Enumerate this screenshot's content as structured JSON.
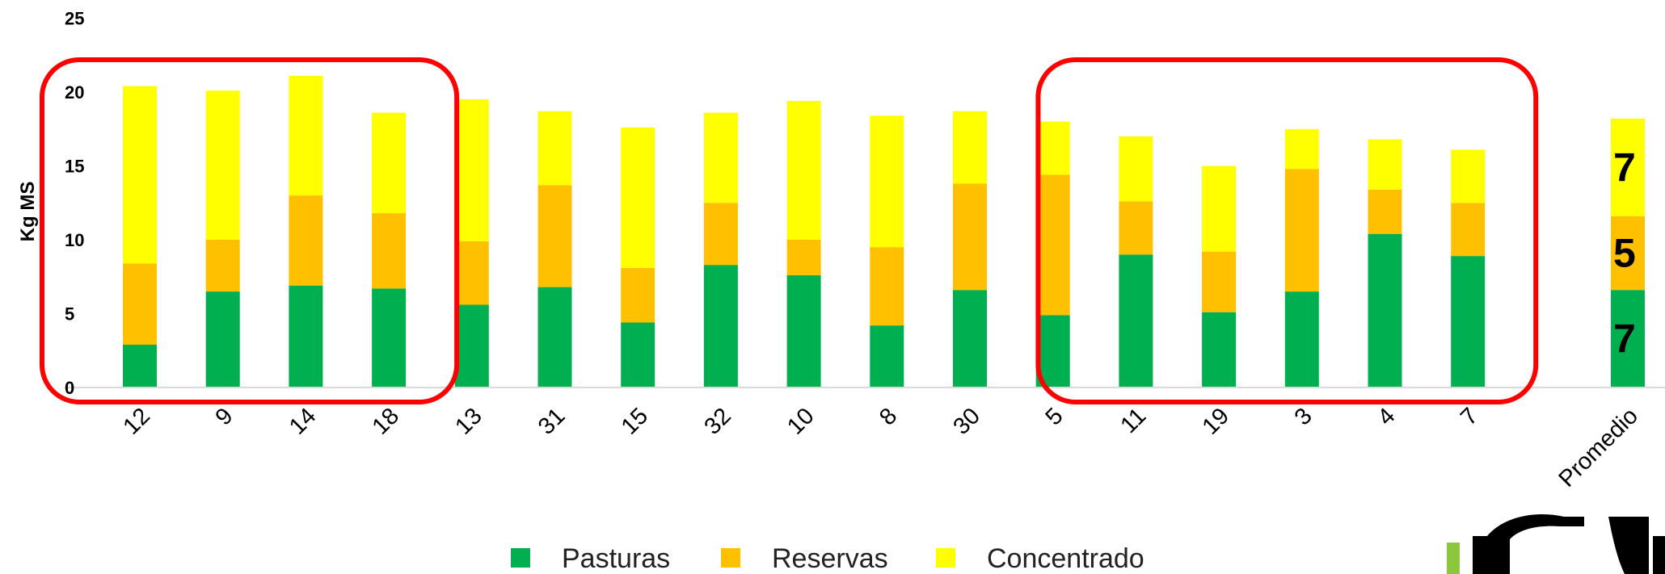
{
  "chart_data": {
    "type": "bar",
    "stacked": true,
    "categories": [
      "12",
      "9",
      "14",
      "18",
      "13",
      "31",
      "15",
      "32",
      "10",
      "8",
      "30",
      "5",
      "11",
      "19",
      "3",
      "4",
      "7",
      "Promedio"
    ],
    "series": [
      {
        "name": "Pasturas",
        "color": "#00b050",
        "values": [
          2.9,
          6.5,
          6.9,
          6.7,
          5.6,
          6.8,
          4.4,
          8.3,
          7.6,
          4.2,
          6.6,
          4.9,
          9.0,
          5.1,
          6.5,
          10.4,
          8.9,
          6.6
        ]
      },
      {
        "name": "Reservas",
        "color": "#ffc000",
        "values": [
          5.5,
          3.5,
          6.1,
          5.1,
          4.3,
          6.9,
          3.7,
          4.2,
          2.4,
          5.3,
          7.2,
          9.5,
          3.6,
          4.1,
          8.3,
          3.0,
          3.6,
          5.0
        ]
      },
      {
        "name": "Concentrado",
        "color": "#ffff00",
        "values": [
          12.0,
          10.1,
          8.1,
          6.8,
          9.6,
          5.0,
          9.5,
          6.1,
          9.4,
          8.9,
          4.9,
          3.6,
          4.4,
          5.8,
          2.7,
          3.4,
          3.6,
          6.6
        ]
      }
    ],
    "average_labels": [
      "7",
      "5",
      "7"
    ],
    "ylabel": "Kg MS",
    "xlabel": "",
    "ylim": [
      0,
      25
    ],
    "yticks": [
      "0",
      "5",
      "10",
      "15",
      "20",
      "25"
    ],
    "grid": false,
    "legend_position": "bottom",
    "highlight_groups": [
      [
        "12",
        "9",
        "14",
        "18"
      ],
      [
        "11",
        "19",
        "3",
        "4",
        "7"
      ]
    ],
    "highlight_color": "#ff0000"
  }
}
